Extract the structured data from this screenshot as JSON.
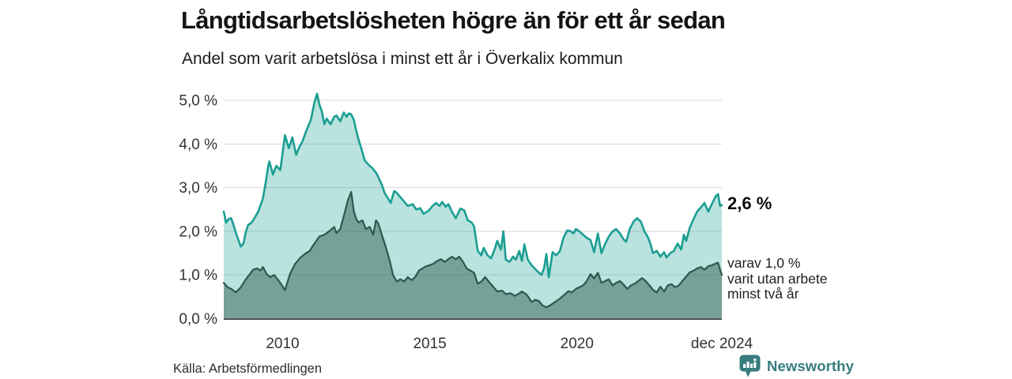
{
  "footer": {
    "source": "Källa: Arbetsförmedlingen",
    "brand": "Newsworthy",
    "brand_color": "#377c7e"
  },
  "chart_data": {
    "type": "area",
    "title": "Långtidsarbetslösheten högre än för ett år sedan",
    "subtitle": "Andel som varit arbetslösa i minst ett år i Överkalix kommun",
    "x_unit": "decimal_year",
    "xlim": [
      2008.0,
      2024.92
    ],
    "ylim": [
      0,
      5.0
    ],
    "grid": "horizontal",
    "grid_color": "#d9d9d9",
    "axis_color": "#3c3c3c",
    "tick_text_color": "#333333",
    "y_ticks": [
      {
        "v": 0,
        "label": "0,0 %"
      },
      {
        "v": 1,
        "label": "1,0 %"
      },
      {
        "v": 2,
        "label": "2,0 %"
      },
      {
        "v": 3,
        "label": "3,0 %"
      },
      {
        "v": 4,
        "label": "4,0 %"
      },
      {
        "v": 5,
        "label": "5,0 %"
      }
    ],
    "x_ticks": [
      {
        "v": 2010,
        "label": "2010"
      },
      {
        "v": 2015,
        "label": "2015"
      },
      {
        "v": 2020,
        "label": "2020"
      },
      {
        "v": 2024.92,
        "label": "dec 2024"
      }
    ],
    "series": [
      {
        "name": "arbetslösa minst ett år",
        "color": "#1b9e92",
        "fill_opacity": 0.3,
        "line_width": 2.6,
        "end_label": "2,6 %",
        "latest_value": 2.6,
        "points": [
          [
            2008.0,
            2.45
          ],
          [
            2008.08,
            2.2
          ],
          [
            2008.17,
            2.28
          ],
          [
            2008.25,
            2.3
          ],
          [
            2008.33,
            2.15
          ],
          [
            2008.42,
            1.95
          ],
          [
            2008.58,
            1.65
          ],
          [
            2008.67,
            1.72
          ],
          [
            2008.75,
            1.98
          ],
          [
            2008.83,
            2.15
          ],
          [
            2008.92,
            2.18
          ],
          [
            2009.0,
            2.25
          ],
          [
            2009.17,
            2.45
          ],
          [
            2009.33,
            2.75
          ],
          [
            2009.42,
            3.1
          ],
          [
            2009.5,
            3.45
          ],
          [
            2009.55,
            3.6
          ],
          [
            2009.67,
            3.3
          ],
          [
            2009.79,
            3.5
          ],
          [
            2009.92,
            3.4
          ],
          [
            2010.0,
            3.8
          ],
          [
            2010.08,
            4.2
          ],
          [
            2010.21,
            3.9
          ],
          [
            2010.33,
            4.15
          ],
          [
            2010.46,
            3.75
          ],
          [
            2010.58,
            3.95
          ],
          [
            2010.67,
            4.05
          ],
          [
            2010.79,
            4.28
          ],
          [
            2010.96,
            4.55
          ],
          [
            2011.08,
            4.95
          ],
          [
            2011.17,
            5.15
          ],
          [
            2011.25,
            4.9
          ],
          [
            2011.33,
            4.75
          ],
          [
            2011.42,
            4.45
          ],
          [
            2011.5,
            4.58
          ],
          [
            2011.63,
            4.45
          ],
          [
            2011.75,
            4.62
          ],
          [
            2011.83,
            4.65
          ],
          [
            2011.96,
            4.52
          ],
          [
            2012.08,
            4.72
          ],
          [
            2012.17,
            4.62
          ],
          [
            2012.25,
            4.7
          ],
          [
            2012.33,
            4.68
          ],
          [
            2012.42,
            4.55
          ],
          [
            2012.5,
            4.3
          ],
          [
            2012.58,
            4.1
          ],
          [
            2012.67,
            3.9
          ],
          [
            2012.79,
            3.62
          ],
          [
            2012.92,
            3.52
          ],
          [
            2013.04,
            3.45
          ],
          [
            2013.13,
            3.38
          ],
          [
            2013.21,
            3.3
          ],
          [
            2013.29,
            3.18
          ],
          [
            2013.38,
            3.05
          ],
          [
            2013.46,
            2.88
          ],
          [
            2013.58,
            2.75
          ],
          [
            2013.67,
            2.65
          ],
          [
            2013.79,
            2.92
          ],
          [
            2013.88,
            2.88
          ],
          [
            2014.0,
            2.78
          ],
          [
            2014.13,
            2.68
          ],
          [
            2014.25,
            2.58
          ],
          [
            2014.42,
            2.62
          ],
          [
            2014.54,
            2.5
          ],
          [
            2014.67,
            2.53
          ],
          [
            2014.79,
            2.4
          ],
          [
            2014.96,
            2.47
          ],
          [
            2015.08,
            2.57
          ],
          [
            2015.21,
            2.65
          ],
          [
            2015.33,
            2.58
          ],
          [
            2015.42,
            2.67
          ],
          [
            2015.54,
            2.56
          ],
          [
            2015.63,
            2.62
          ],
          [
            2015.75,
            2.45
          ],
          [
            2015.88,
            2.3
          ],
          [
            2016.04,
            2.52
          ],
          [
            2016.17,
            2.48
          ],
          [
            2016.29,
            2.25
          ],
          [
            2016.42,
            2.2
          ],
          [
            2016.5,
            2.12
          ],
          [
            2016.63,
            1.55
          ],
          [
            2016.75,
            1.45
          ],
          [
            2016.83,
            1.62
          ],
          [
            2016.96,
            1.45
          ],
          [
            2017.08,
            1.38
          ],
          [
            2017.21,
            1.6
          ],
          [
            2017.29,
            1.78
          ],
          [
            2017.42,
            1.58
          ],
          [
            2017.5,
            2.0
          ],
          [
            2017.58,
            1.35
          ],
          [
            2017.71,
            1.3
          ],
          [
            2017.83,
            1.42
          ],
          [
            2017.92,
            1.35
          ],
          [
            2018.04,
            1.55
          ],
          [
            2018.13,
            1.32
          ],
          [
            2018.21,
            1.7
          ],
          [
            2018.33,
            1.35
          ],
          [
            2018.46,
            1.22
          ],
          [
            2018.63,
            1.1
          ],
          [
            2018.79,
            1.0
          ],
          [
            2018.88,
            1.15
          ],
          [
            2018.96,
            1.48
          ],
          [
            2019.04,
            0.95
          ],
          [
            2019.17,
            1.52
          ],
          [
            2019.29,
            1.45
          ],
          [
            2019.42,
            1.55
          ],
          [
            2019.54,
            1.85
          ],
          [
            2019.67,
            2.02
          ],
          [
            2019.79,
            2.0
          ],
          [
            2019.88,
            1.95
          ],
          [
            2019.96,
            2.05
          ],
          [
            2020.08,
            2.0
          ],
          [
            2020.21,
            1.92
          ],
          [
            2020.33,
            1.85
          ],
          [
            2020.46,
            1.8
          ],
          [
            2020.58,
            1.52
          ],
          [
            2020.71,
            1.95
          ],
          [
            2020.83,
            1.5
          ],
          [
            2020.96,
            1.72
          ],
          [
            2021.08,
            1.88
          ],
          [
            2021.21,
            2.0
          ],
          [
            2021.33,
            2.05
          ],
          [
            2021.46,
            1.95
          ],
          [
            2021.58,
            1.82
          ],
          [
            2021.67,
            1.76
          ],
          [
            2021.79,
            2.05
          ],
          [
            2021.92,
            2.22
          ],
          [
            2022.04,
            2.3
          ],
          [
            2022.17,
            2.22
          ],
          [
            2022.29,
            2.0
          ],
          [
            2022.42,
            1.85
          ],
          [
            2022.5,
            1.7
          ],
          [
            2022.58,
            1.5
          ],
          [
            2022.71,
            1.55
          ],
          [
            2022.83,
            1.42
          ],
          [
            2022.96,
            1.52
          ],
          [
            2023.04,
            1.4
          ],
          [
            2023.17,
            1.5
          ],
          [
            2023.29,
            1.55
          ],
          [
            2023.42,
            1.72
          ],
          [
            2023.54,
            1.58
          ],
          [
            2023.63,
            1.92
          ],
          [
            2023.71,
            1.78
          ],
          [
            2023.83,
            2.08
          ],
          [
            2023.96,
            2.28
          ],
          [
            2024.08,
            2.45
          ],
          [
            2024.21,
            2.55
          ],
          [
            2024.33,
            2.65
          ],
          [
            2024.46,
            2.45
          ],
          [
            2024.58,
            2.62
          ],
          [
            2024.71,
            2.8
          ],
          [
            2024.79,
            2.85
          ],
          [
            2024.86,
            2.58
          ],
          [
            2024.92,
            2.6
          ]
        ]
      },
      {
        "name": "utan arbete minst två år",
        "color": "#2e574e",
        "fill_opacity": 0.48,
        "line_width": 2.2,
        "end_label_lines": [
          "varav 1,0 %",
          "varit utan arbete",
          "minst två år"
        ],
        "latest_value": 1.0,
        "points": [
          [
            2008.0,
            0.82
          ],
          [
            2008.13,
            0.72
          ],
          [
            2008.25,
            0.68
          ],
          [
            2008.42,
            0.6
          ],
          [
            2008.58,
            0.72
          ],
          [
            2008.75,
            0.9
          ],
          [
            2008.92,
            1.05
          ],
          [
            2009.0,
            1.12
          ],
          [
            2009.13,
            1.15
          ],
          [
            2009.25,
            1.1
          ],
          [
            2009.33,
            1.18
          ],
          [
            2009.46,
            1.02
          ],
          [
            2009.58,
            0.95
          ],
          [
            2009.71,
            1.0
          ],
          [
            2009.83,
            0.9
          ],
          [
            2009.96,
            0.78
          ],
          [
            2010.08,
            0.65
          ],
          [
            2010.25,
            1.02
          ],
          [
            2010.42,
            1.25
          ],
          [
            2010.58,
            1.38
          ],
          [
            2010.75,
            1.48
          ],
          [
            2010.92,
            1.55
          ],
          [
            2011.08,
            1.72
          ],
          [
            2011.25,
            1.88
          ],
          [
            2011.42,
            1.92
          ],
          [
            2011.58,
            2.0
          ],
          [
            2011.75,
            2.1
          ],
          [
            2011.83,
            1.96
          ],
          [
            2011.96,
            2.05
          ],
          [
            2012.08,
            2.35
          ],
          [
            2012.21,
            2.7
          ],
          [
            2012.33,
            2.9
          ],
          [
            2012.42,
            2.45
          ],
          [
            2012.5,
            2.28
          ],
          [
            2012.58,
            2.2
          ],
          [
            2012.71,
            2.25
          ],
          [
            2012.83,
            2.05
          ],
          [
            2012.96,
            2.1
          ],
          [
            2013.08,
            1.92
          ],
          [
            2013.17,
            2.25
          ],
          [
            2013.25,
            2.18
          ],
          [
            2013.38,
            1.9
          ],
          [
            2013.5,
            1.65
          ],
          [
            2013.63,
            1.35
          ],
          [
            2013.75,
            1.0
          ],
          [
            2013.88,
            0.85
          ],
          [
            2014.0,
            0.9
          ],
          [
            2014.13,
            0.85
          ],
          [
            2014.25,
            0.95
          ],
          [
            2014.38,
            0.88
          ],
          [
            2014.5,
            0.95
          ],
          [
            2014.63,
            1.1
          ],
          [
            2014.75,
            1.15
          ],
          [
            2014.88,
            1.2
          ],
          [
            2015.0,
            1.22
          ],
          [
            2015.13,
            1.26
          ],
          [
            2015.25,
            1.32
          ],
          [
            2015.38,
            1.36
          ],
          [
            2015.5,
            1.3
          ],
          [
            2015.63,
            1.36
          ],
          [
            2015.75,
            1.42
          ],
          [
            2015.88,
            1.36
          ],
          [
            2016.0,
            1.42
          ],
          [
            2016.13,
            1.3
          ],
          [
            2016.25,
            1.15
          ],
          [
            2016.38,
            1.1
          ],
          [
            2016.5,
            1.05
          ],
          [
            2016.63,
            0.8
          ],
          [
            2016.75,
            0.85
          ],
          [
            2016.88,
            0.95
          ],
          [
            2017.0,
            0.85
          ],
          [
            2017.13,
            0.75
          ],
          [
            2017.29,
            0.62
          ],
          [
            2017.46,
            0.64
          ],
          [
            2017.58,
            0.56
          ],
          [
            2017.75,
            0.58
          ],
          [
            2017.88,
            0.52
          ],
          [
            2018.0,
            0.56
          ],
          [
            2018.13,
            0.62
          ],
          [
            2018.29,
            0.55
          ],
          [
            2018.46,
            0.38
          ],
          [
            2018.58,
            0.43
          ],
          [
            2018.71,
            0.4
          ],
          [
            2018.83,
            0.3
          ],
          [
            2018.96,
            0.26
          ],
          [
            2019.08,
            0.3
          ],
          [
            2019.25,
            0.38
          ],
          [
            2019.42,
            0.46
          ],
          [
            2019.58,
            0.55
          ],
          [
            2019.71,
            0.63
          ],
          [
            2019.83,
            0.6
          ],
          [
            2019.96,
            0.68
          ],
          [
            2020.08,
            0.72
          ],
          [
            2020.21,
            0.76
          ],
          [
            2020.33,
            0.86
          ],
          [
            2020.46,
            1.02
          ],
          [
            2020.58,
            0.92
          ],
          [
            2020.71,
            1.05
          ],
          [
            2020.83,
            0.82
          ],
          [
            2020.96,
            0.86
          ],
          [
            2021.08,
            0.9
          ],
          [
            2021.21,
            0.76
          ],
          [
            2021.33,
            0.82
          ],
          [
            2021.46,
            0.86
          ],
          [
            2021.58,
            0.78
          ],
          [
            2021.71,
            0.68
          ],
          [
            2021.83,
            0.76
          ],
          [
            2021.96,
            0.8
          ],
          [
            2022.08,
            0.86
          ],
          [
            2022.21,
            0.93
          ],
          [
            2022.33,
            0.86
          ],
          [
            2022.46,
            0.76
          ],
          [
            2022.58,
            0.66
          ],
          [
            2022.71,
            0.6
          ],
          [
            2022.83,
            0.73
          ],
          [
            2022.96,
            0.62
          ],
          [
            2023.08,
            0.76
          ],
          [
            2023.21,
            0.79
          ],
          [
            2023.33,
            0.72
          ],
          [
            2023.46,
            0.76
          ],
          [
            2023.58,
            0.86
          ],
          [
            2023.71,
            0.96
          ],
          [
            2023.83,
            1.06
          ],
          [
            2023.96,
            1.1
          ],
          [
            2024.08,
            1.15
          ],
          [
            2024.21,
            1.18
          ],
          [
            2024.33,
            1.12
          ],
          [
            2024.46,
            1.2
          ],
          [
            2024.58,
            1.22
          ],
          [
            2024.71,
            1.26
          ],
          [
            2024.79,
            1.28
          ],
          [
            2024.86,
            1.12
          ],
          [
            2024.92,
            1.0
          ]
        ]
      }
    ]
  }
}
